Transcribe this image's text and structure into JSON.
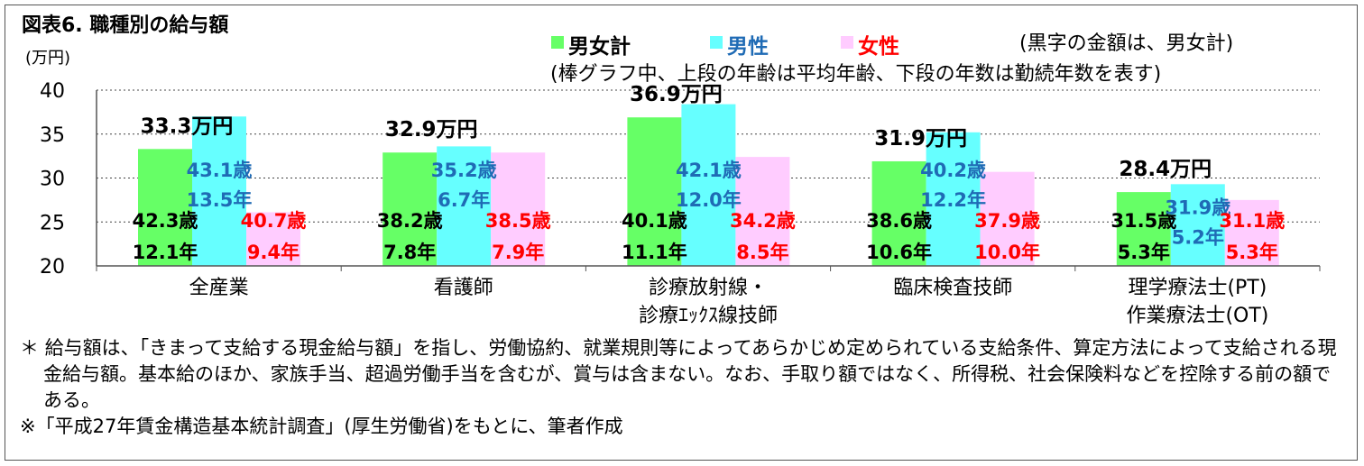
{
  "figure_title": "図表6.  職種別の給与額",
  "y_unit": "(万円)",
  "legend": [
    {
      "label": "男女計",
      "color": "#66ff66",
      "text_color": "#000000"
    },
    {
      "label": "男性",
      "color": "#66ffff",
      "text_color": "#1f6bb5"
    },
    {
      "label": "女性",
      "color": "#ffccff",
      "text_color": "#ff0000"
    }
  ],
  "note_line1": "(黒字の金額は、男女計)",
  "note_line2": "(棒グラフ中、上段の年齢は平均年齢、下段の年数は勤続年数を表す)",
  "chart_data": {
    "type": "bar",
    "ylim": [
      20,
      40
    ],
    "yticks": [
      "40",
      "35",
      "30",
      "25",
      "20"
    ],
    "grid": true,
    "legend_position": "top",
    "categories": [
      [
        "全産業"
      ],
      [
        "看護師"
      ],
      [
        "診療放射線・",
        "診療ｴｯｸｽ線技師"
      ],
      [
        "臨床検査技師"
      ],
      [
        "理学療法士(PT)",
        "作業療法士(OT)"
      ]
    ],
    "series": [
      {
        "name": "男女計",
        "color": "#66ff66",
        "label_color": "#000000",
        "values": [
          33.3,
          32.9,
          36.9,
          31.9,
          28.4
        ]
      },
      {
        "name": "男性",
        "color": "#66ffff",
        "label_color": "#1f6bb5",
        "values": [
          37.0,
          33.6,
          38.4,
          35.2,
          29.3
        ]
      },
      {
        "name": "女性",
        "color": "#ffccff",
        "label_color": "#ff0000",
        "values": [
          26.1,
          32.9,
          32.4,
          30.7,
          27.5
        ]
      }
    ],
    "total_labels": [
      "33.3万円",
      "32.9万円",
      "36.9万円",
      "31.9万円",
      "28.4万円"
    ],
    "bar_labels": [
      {
        "total": [
          "42.3歳",
          "12.1年"
        ],
        "male": [
          "43.1歳",
          "13.5年"
        ],
        "female": [
          "40.7歳",
          "9.4年"
        ]
      },
      {
        "total": [
          "38.2歳",
          "7.8年"
        ],
        "male": [
          "35.2歳",
          "6.7年"
        ],
        "female": [
          "38.5歳",
          "7.9年"
        ]
      },
      {
        "total": [
          "40.1歳",
          "11.1年"
        ],
        "male": [
          "42.1歳",
          "12.0年"
        ],
        "female": [
          "34.2歳",
          "8.5年"
        ]
      },
      {
        "total": [
          "38.6歳",
          "10.6年"
        ],
        "male": [
          "40.2歳",
          "12.2年"
        ],
        "female": [
          "37.9歳",
          "10.0年"
        ]
      },
      {
        "total": [
          "31.5歳",
          "5.3年"
        ],
        "male": [
          "31.9歳",
          "5.2年"
        ],
        "female": [
          "31.1歳",
          "5.3年"
        ]
      }
    ]
  },
  "footnote1": "＊ 給与額は、「きまって支給する現金給与額」を指し、労働協約、就業規則等によってあらかじめ定められている支給条件、算定方法によって支給される現金給与額。基本給のほか、家族手当、超過労働手当を含むが、賞与は含まない。なお、手取り額ではなく、所得税、社会保険料などを控除する前の額である。",
  "footnote2": "※「平成27年賃金構造基本統計調査」(厚生労働省)をもとに、筆者作成"
}
